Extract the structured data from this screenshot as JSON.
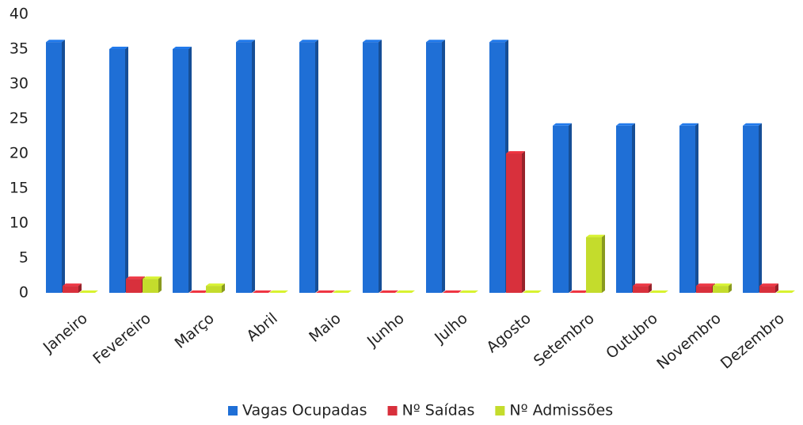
{
  "chart_data": {
    "type": "bar",
    "categories": [
      "Janeiro",
      "Fevereiro",
      "Março",
      "Abril",
      "Maio",
      "Junho",
      "Julho",
      "Agosto",
      "Setembro",
      "Outubro",
      "Novembro",
      "Dezembro"
    ],
    "series": [
      {
        "name": "Vagas Ocupadas",
        "color": "#1f6fd6",
        "values": [
          36,
          35,
          35,
          36,
          36,
          36,
          36,
          36,
          24,
          24,
          24,
          24
        ]
      },
      {
        "name": "Nº Saídas",
        "color": "#d8303c",
        "values": [
          1,
          2,
          0,
          0,
          0,
          0,
          0,
          20,
          0,
          1,
          1,
          1
        ]
      },
      {
        "name": "Nº Admissões",
        "color": "#c4dc2c",
        "values": [
          0,
          2,
          1,
          0,
          0,
          0,
          0,
          0,
          8,
          0,
          1,
          0
        ]
      }
    ],
    "ylim": [
      0,
      40
    ],
    "yticks": [
      0,
      5,
      10,
      15,
      20,
      25,
      30,
      35,
      40
    ],
    "grid": false,
    "legend": "bottom"
  }
}
